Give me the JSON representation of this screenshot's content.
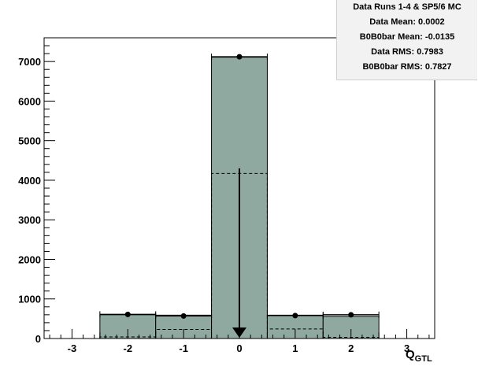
{
  "chart_data": {
    "type": "bar",
    "xlabel": "Q",
    "xlabel_sub": "GTL",
    "xlim": [
      -3.5,
      3.5
    ],
    "ylim": [
      0,
      7600
    ],
    "x_ticks": [
      -3,
      -2,
      -1,
      0,
      1,
      2,
      3
    ],
    "y_ticks": [
      0,
      1000,
      2000,
      3000,
      4000,
      5000,
      6000,
      7000
    ],
    "bins": [
      {
        "low": -2.5,
        "high": -1.5
      },
      {
        "low": -1.5,
        "high": -0.5
      },
      {
        "low": -0.5,
        "high": 0.5
      },
      {
        "low": 0.5,
        "high": 1.5
      },
      {
        "low": 1.5,
        "high": 2.5
      }
    ],
    "series": [
      {
        "name": "Data",
        "style": "points",
        "x": [
          -2,
          -1,
          0,
          1,
          2
        ],
        "values": [
          610,
          570,
          7120,
          580,
          600
        ]
      },
      {
        "name": "SP5/6 MC",
        "style": "filled-histogram",
        "color": "#8fa8a0",
        "x": [
          -2,
          -1,
          0,
          1,
          2
        ],
        "values": [
          600,
          590,
          7110,
          590,
          560
        ]
      },
      {
        "name": "B0B0bar",
        "style": "dashed-histogram",
        "x": [
          -2,
          -1,
          0,
          1,
          2
        ],
        "values": [
          40,
          230,
          4170,
          240,
          30
        ]
      }
    ],
    "mean_marker": {
      "x": 0,
      "from": 4300,
      "to": 0
    },
    "stats": [
      "Data Runs 1-4 & SP5/6 MC",
      "Data Mean: 0.0002",
      "B0B0bar Mean: -0.0135",
      "Data RMS: 0.7983",
      "B0B0bar RMS: 0.7827"
    ],
    "grid": false
  }
}
